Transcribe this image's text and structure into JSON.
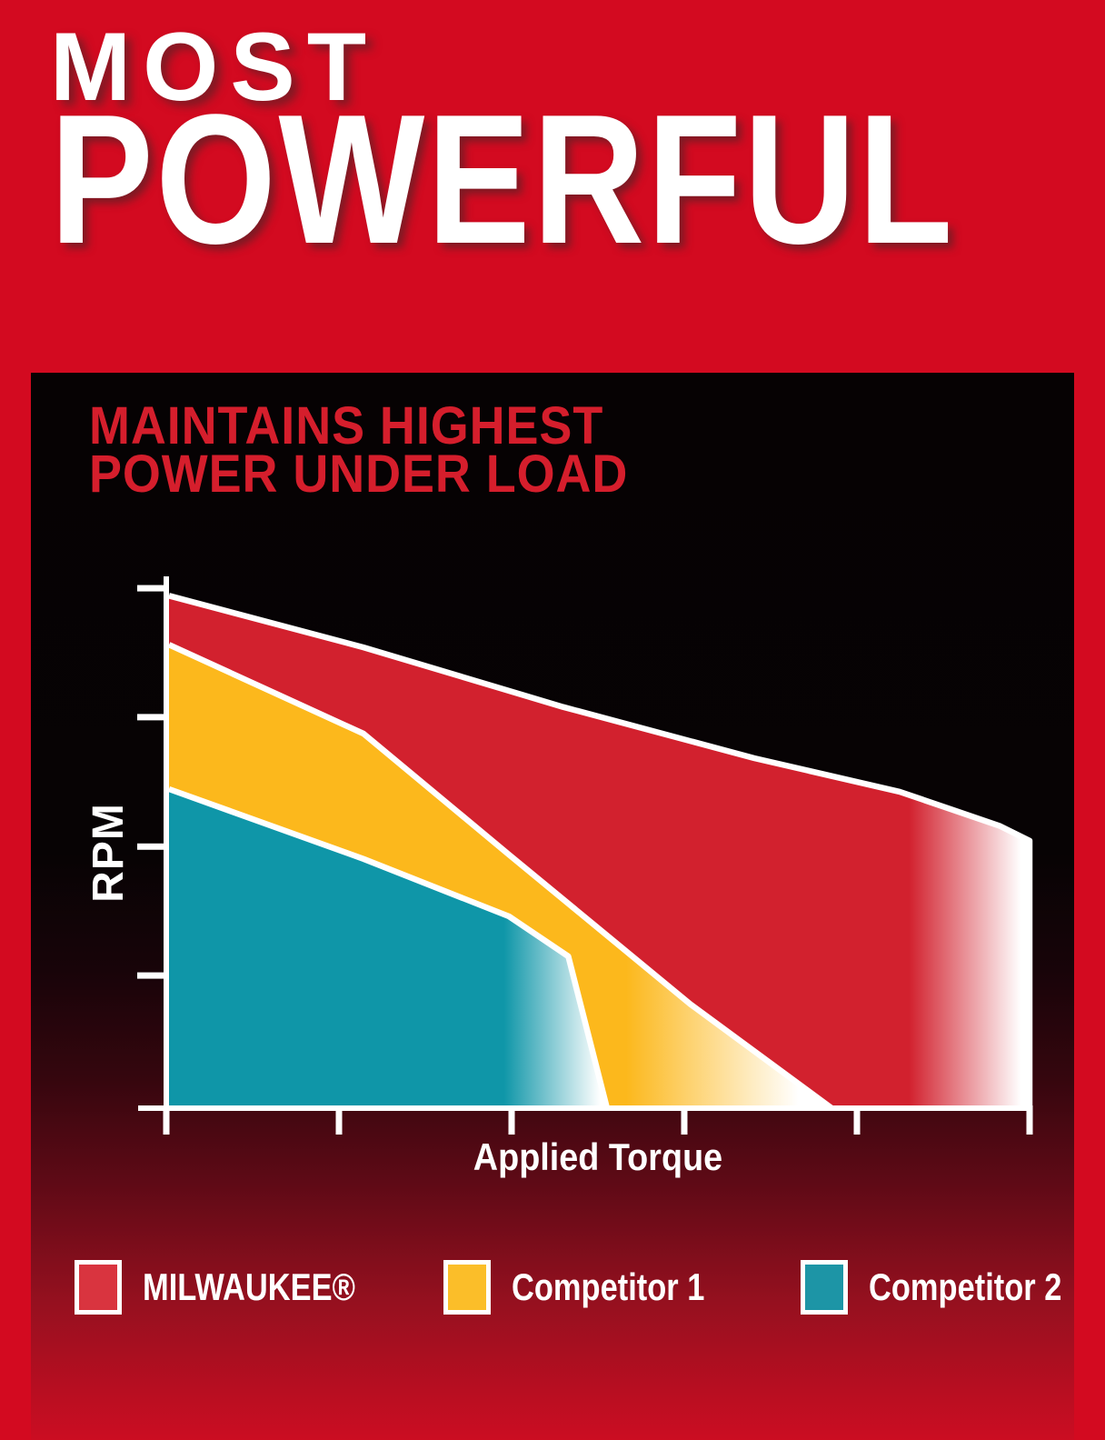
{
  "hero": {
    "line1": "MOST",
    "line2": "POWERFUL"
  },
  "panel_heading": {
    "line1": "MAINTAINS HIGHEST",
    "line2": "POWER UNDER LOAD"
  },
  "colors": {
    "page_red": "#d30a20",
    "panel_black": "#060203",
    "heading_red": "#d51e2c",
    "axis_white": "#ffffff",
    "milwaukee_red": "#d2212e",
    "competitor1_yellow": "#fcb81c",
    "competitor2_teal": "#0f96a8"
  },
  "chart_data": {
    "type": "area",
    "title": "MAINTAINS HIGHEST POWER UNDER LOAD",
    "xlabel": "Applied Torque",
    "ylabel": "RPM",
    "xlim": [
      0,
      100
    ],
    "ylim": [
      0,
      100
    ],
    "x_unit": "percent of max applied torque (unlabeled axis)",
    "y_unit": "percent of max RPM (unlabeled axis)",
    "grid": false,
    "legend_position": "bottom",
    "x_tick_values": [
      0,
      20,
      40,
      60,
      80,
      100
    ],
    "y_tick_values": [
      97.6,
      73.4,
      49.1,
      24.9
    ],
    "series": [
      {
        "name": "MILWAUKEE®",
        "color": "#d2212e",
        "legend_color": "#d9343f",
        "fade_start": 0.86,
        "fade_end": 0.99,
        "right_edge_drop": true,
        "points": [
          [
            0,
            96.2
          ],
          [
            22.6,
            86.5
          ],
          [
            45.8,
            75.3
          ],
          [
            68,
            65.7
          ],
          [
            84.9,
            59.4
          ],
          [
            96.5,
            53
          ],
          [
            100,
            50.2
          ]
        ]
      },
      {
        "name": "Competitor 1",
        "color": "#fcb81c",
        "legend_color": "#fbbe29",
        "fade_start": 0.69,
        "fade_end": 0.95,
        "right_edge_drop": false,
        "points": [
          [
            0,
            87
          ],
          [
            22.6,
            70.3
          ],
          [
            39.5,
            47.6
          ],
          [
            60.6,
            19.5
          ],
          [
            77,
            0
          ]
        ]
      },
      {
        "name": "Competitor 2",
        "color": "#0f96a8",
        "legend_color": "#1d95a6",
        "fade_start": 0.765,
        "fade_end": 0.985,
        "right_edge_drop": false,
        "points": [
          [
            0,
            59.9
          ],
          [
            22.6,
            46.8
          ],
          [
            39.5,
            36
          ],
          [
            46.4,
            28.5
          ],
          [
            50.9,
            0
          ]
        ]
      }
    ]
  }
}
